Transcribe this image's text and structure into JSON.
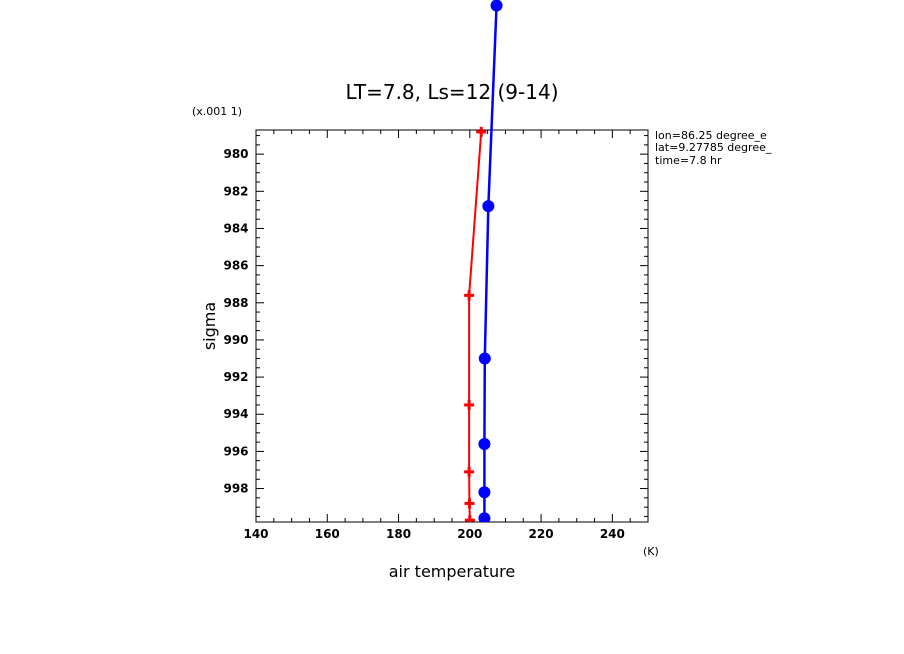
{
  "chart_data": {
    "type": "line",
    "title": "LT=7.8, Ls=12 (9-14)",
    "xlabel": "air temperature",
    "xunit": "(K)",
    "ylabel": "sigma",
    "yscale_note": "(x.001 1)",
    "xlim": [
      140,
      250
    ],
    "ylim": [
      999.8,
      978.7
    ],
    "y_inverted": true,
    "x_ticks": [
      "140",
      "160",
      "180",
      "200",
      "220",
      "240"
    ],
    "x_tick_values": [
      140,
      160,
      180,
      200,
      220,
      240
    ],
    "y_ticks": [
      "980",
      "982",
      "984",
      "986",
      "988",
      "990",
      "992",
      "994",
      "996",
      "998"
    ],
    "y_tick_values": [
      980,
      982,
      984,
      986,
      988,
      990,
      992,
      994,
      996,
      998
    ],
    "grid": false,
    "legend": "none",
    "annotations": [
      "lon=86.25 degree_e",
      "lat=9.27785 degree_",
      "time=7.8 hr"
    ],
    "series": [
      {
        "color": "#ff0000",
        "marker": "plus",
        "points": [
          {
            "x": 203.2,
            "y": 978.8
          },
          {
            "x": 199.8,
            "y": 987.6
          },
          {
            "x": 199.8,
            "y": 993.5
          },
          {
            "x": 199.8,
            "y": 997.1
          },
          {
            "x": 199.9,
            "y": 998.8
          },
          {
            "x": 200.0,
            "y": 999.7
          }
        ]
      },
      {
        "color": "#0000ff",
        "marker": "circle",
        "points": [
          {
            "x": 207.5,
            "y": 972.0
          },
          {
            "x": 205.2,
            "y": 982.8
          },
          {
            "x": 204.2,
            "y": 991.0
          },
          {
            "x": 204.1,
            "y": 995.6
          },
          {
            "x": 204.1,
            "y": 998.2
          },
          {
            "x": 204.1,
            "y": 999.6
          }
        ]
      }
    ]
  }
}
